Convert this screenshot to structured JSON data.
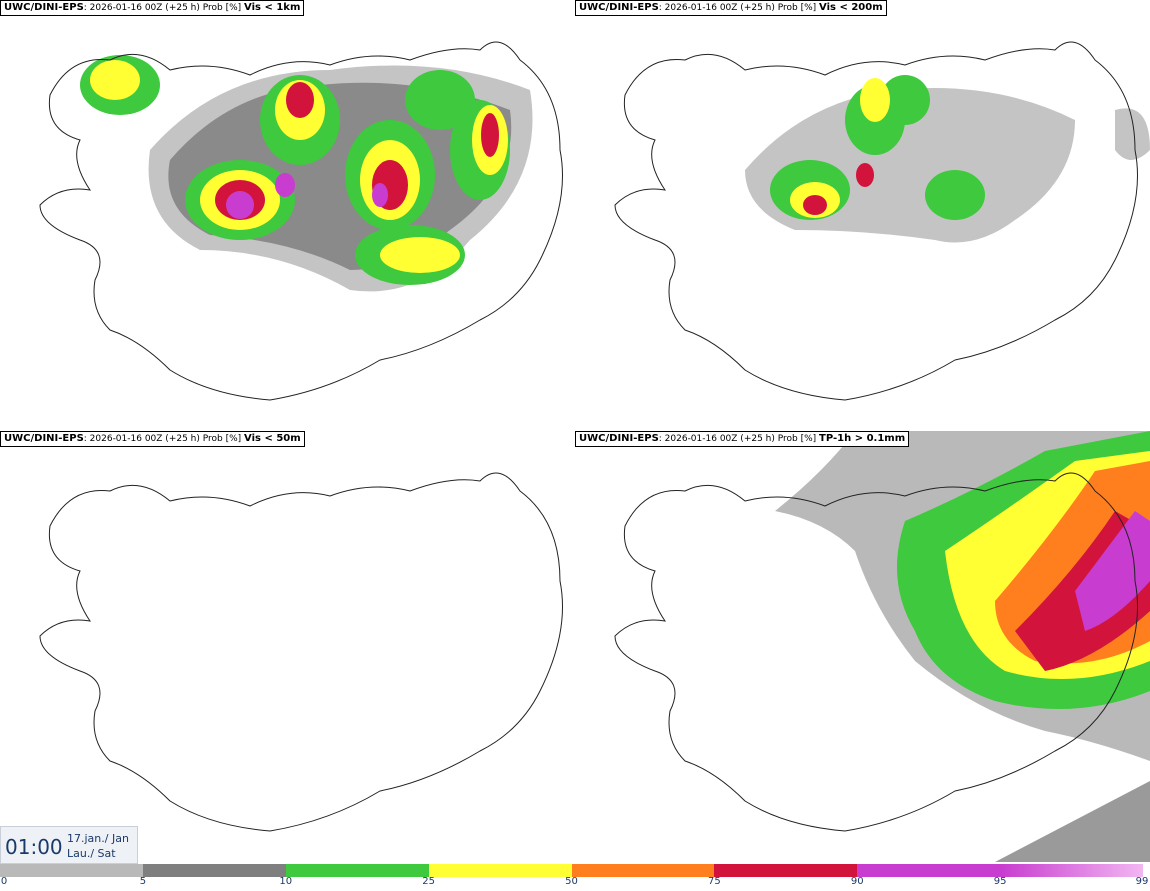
{
  "panels": [
    {
      "model": "UWC/DINI-EPS",
      "meta": ": 2026-01-16 00Z (+25 h) Prob [%]",
      "var": "Vis < 1km"
    },
    {
      "model": "UWC/DINI-EPS",
      "meta": ": 2026-01-16 00Z (+25 h) Prob [%]",
      "var": "Vis < 200m"
    },
    {
      "model": "UWC/DINI-EPS",
      "meta": ": 2026-01-16 00Z (+25 h) Prob [%]",
      "var": "Vis < 50m"
    },
    {
      "model": "UWC/DINI-EPS",
      "meta": ": 2026-01-16 00Z (+25 h) Prob [%]",
      "var": "TP-1h > 0.1mm"
    }
  ],
  "time": {
    "clock": "01:00",
    "date_line": "17.jan./ Jan",
    "day_line": "Lau./ Sat"
  },
  "legend": {
    "ticks": [
      "0",
      "5",
      "10",
      "25",
      "50",
      "75",
      "90",
      "95",
      "99"
    ],
    "colors": [
      "#ffffff",
      "#b9b9b9",
      "#7f7f7f",
      "#3ec93e",
      "#ffff33",
      "#ff7f1f",
      "#d2143c",
      "#c83ccf",
      "#f2b6f2"
    ]
  }
}
